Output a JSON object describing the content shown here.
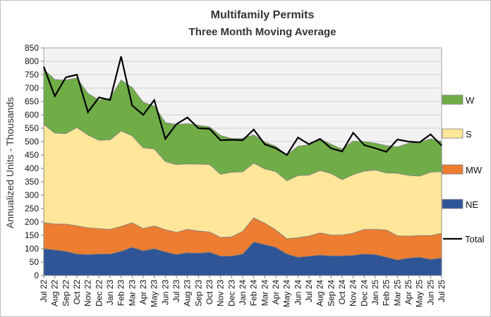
{
  "chart_data": {
    "type": "area",
    "stacked": true,
    "title": "Multifamily  Permits",
    "subtitle": "Three Month Moving Average",
    "ylabel": "Annualized  Units  - Thousands",
    "xlabel": "",
    "ylim": [
      0,
      850
    ],
    "ystep": 50,
    "grid": true,
    "legend_position": "right",
    "categories": [
      "Jul 22",
      "Aug 22",
      "Sep 22",
      "Oct 22",
      "Nov 22",
      "Dec 22",
      "Jan 23",
      "Feb 23",
      "Mar 23",
      "Apr 23",
      "May 23",
      "Jun 23",
      "Jul 23",
      "Aug 23",
      "Sep 23",
      "Oct 23",
      "Nov 23",
      "Dec 23",
      "Jan 24",
      "Feb 24",
      "Mar 24",
      "Apr 24",
      "May 24",
      "Jun 24",
      "Jul 24",
      "Aug 24",
      "Sep 24",
      "Oct 24",
      "Nov 24",
      "Dec 24",
      "Jan 25",
      "Feb 25",
      "Mar 25",
      "Apr 25",
      "May 25",
      "Jun 25",
      "Jul 25"
    ],
    "series": [
      {
        "name": "NE",
        "color": "#2f5597",
        "values": [
          100,
          95,
          90,
          80,
          78,
          80,
          80,
          90,
          105,
          92,
          100,
          88,
          78,
          85,
          83,
          87,
          72,
          72,
          80,
          125,
          115,
          105,
          80,
          68,
          72,
          76,
          73,
          73,
          75,
          80,
          78,
          68,
          58,
          65,
          68,
          60,
          65
        ]
      },
      {
        "name": "MW",
        "color": "#ed7d31",
        "values": [
          97,
          97,
          102,
          105,
          100,
          95,
          92,
          93,
          92,
          83,
          85,
          83,
          83,
          87,
          83,
          75,
          70,
          72,
          85,
          90,
          80,
          65,
          57,
          73,
          75,
          83,
          78,
          78,
          83,
          92,
          94,
          102,
          90,
          82,
          81,
          89,
          93
        ]
      },
      {
        "name": "S",
        "color": "#ffe699",
        "values": [
          368,
          340,
          338,
          368,
          347,
          330,
          335,
          357,
          325,
          302,
          288,
          255,
          253,
          245,
          250,
          253,
          236,
          242,
          222,
          205,
          203,
          218,
          217,
          232,
          228,
          233,
          230,
          207,
          219,
          218,
          222,
          213,
          234,
          227,
          222,
          237,
          230
        ]
      },
      {
        "name": "W",
        "color": "#70ad47",
        "values": [
          205,
          200,
          200,
          185,
          155,
          150,
          155,
          190,
          180,
          170,
          160,
          145,
          150,
          150,
          145,
          140,
          145,
          125,
          125,
          105,
          100,
          95,
          96,
          110,
          113,
          118,
          109,
          114,
          125,
          110,
          100,
          102,
          98,
          120,
          126,
          124,
          112
        ]
      }
    ],
    "total": {
      "name": "Total",
      "color": "#000000",
      "values": [
        780,
        670,
        740,
        750,
        610,
        665,
        655,
        818,
        635,
        600,
        655,
        510,
        565,
        590,
        550,
        548,
        505,
        507,
        505,
        545,
        490,
        475,
        450,
        515,
        490,
        510,
        475,
        463,
        533,
        487,
        475,
        462,
        508,
        500,
        497,
        527,
        485
      ]
    }
  }
}
